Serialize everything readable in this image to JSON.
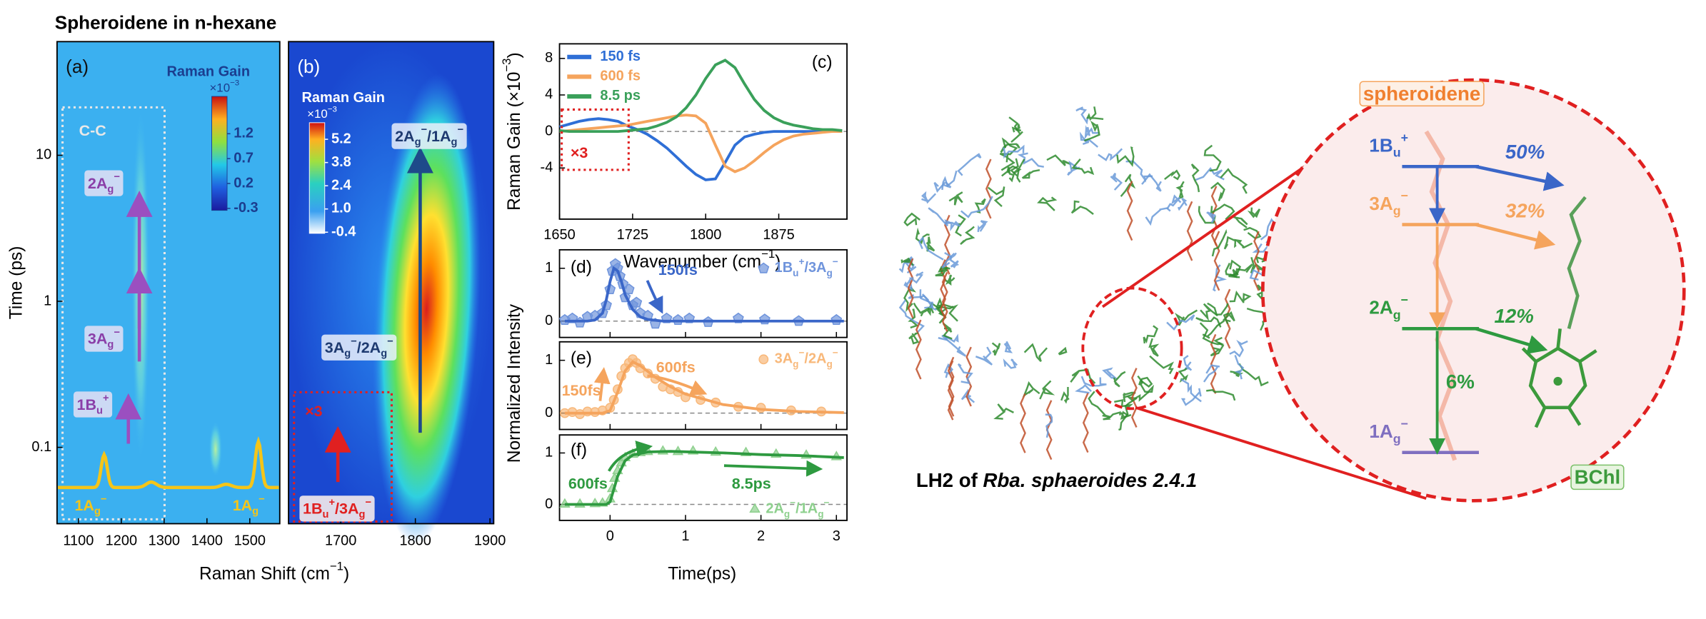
{
  "title": "Spheroidene in n-hexane",
  "chart_data": [
    {
      "type": "heatmap",
      "panel": "(a)",
      "xlim": [
        1050,
        1570
      ],
      "xticks": [
        1100,
        1200,
        1300,
        1400,
        1500
      ],
      "ylim": [
        0.03,
        60
      ],
      "yticks": [
        0.1,
        1,
        10
      ],
      "log_y": true,
      "ylabel": "Time (ps)",
      "colorbar": {
        "title": "Raman Gain",
        "unit": "×10−3",
        "lim": [
          -0.34,
          1.95
        ],
        "ticks": [
          1.2,
          0.7,
          0.2,
          -0.3
        ]
      },
      "annotations": [
        "C-C",
        "2Ag−",
        "3Ag−",
        "1Bu+",
        "1Ag−",
        "1Ag−"
      ]
    },
    {
      "type": "heatmap",
      "panel": "(b)",
      "xlim": [
        1630,
        1905
      ],
      "xticks": [
        1700,
        1800,
        1900
      ],
      "ylim": [
        0.03,
        60
      ],
      "log_y": true,
      "xlabel": "Raman Shift (cm−1)",
      "colorbar": {
        "title": "Raman Gain",
        "unit": "×10−3",
        "lim": [
          -0.47,
          6.2
        ],
        "ticks": [
          5.2,
          3.8,
          2.4,
          {
            "value": 1,
            "label": "1.0"
          },
          -0.4
        ]
      },
      "annotations": [
        "2Ag−/1Ag−",
        "3Ag−/2Ag−",
        "×3",
        "1Bu+/3Ag−"
      ]
    },
    {
      "type": "line",
      "panel": "(c)",
      "xlabel": "Wavenumber (cm−1)",
      "ylabel": "Raman Gain (×10−3)",
      "xlim": [
        1650,
        1945
      ],
      "xticks": [
        1650,
        1725,
        1800,
        1875
      ],
      "ylim": [
        -9.6,
        9.6
      ],
      "yticks": [
        -4,
        0,
        4,
        8
      ],
      "legend": "upper left",
      "annotations": [
        "×3"
      ],
      "x": [
        1650,
        1660,
        1670,
        1680,
        1690,
        1700,
        1710,
        1720,
        1730,
        1740,
        1750,
        1760,
        1770,
        1780,
        1790,
        1800,
        1810,
        1820,
        1830,
        1840,
        1850,
        1860,
        1870,
        1880,
        1890,
        1900,
        1910,
        1920,
        1930,
        1940
      ],
      "series": [
        {
          "name": "150 fs",
          "color": "#2f6fd6",
          "values": [
            0.5,
            0.8,
            1.1,
            1.3,
            1.4,
            1.3,
            1.1,
            0.6,
            0.2,
            -0.3,
            -1.0,
            -1.8,
            -2.8,
            -3.8,
            -4.7,
            -5.3,
            -5.2,
            -3.4,
            -1.5,
            -0.6,
            -0.3,
            -0.1,
            0,
            0,
            0,
            0,
            0,
            0,
            0,
            0
          ]
        },
        {
          "name": "600 fs",
          "color": "#f5a45d",
          "values": [
            0,
            0.1,
            0.2,
            0.3,
            0.4,
            0.5,
            0.6,
            0.7,
            0.9,
            1.1,
            1.3,
            1.5,
            1.7,
            1.8,
            1.7,
            0.9,
            -1.5,
            -3.8,
            -4.4,
            -4.0,
            -3.2,
            -2.3,
            -1.5,
            -0.9,
            -0.5,
            -0.3,
            -0.2,
            -0.1,
            0,
            0
          ]
        },
        {
          "name": "8.5 ps",
          "color": "#3aa05a",
          "values": [
            0.1,
            0,
            0,
            0,
            0,
            0,
            0,
            0.1,
            0.2,
            0.3,
            0.6,
            1.0,
            1.6,
            2.6,
            4.0,
            5.8,
            7.3,
            7.8,
            7.0,
            5.2,
            3.5,
            2.3,
            1.5,
            1.0,
            0.7,
            0.5,
            0.3,
            0.2,
            0.2,
            0.1
          ]
        }
      ]
    },
    {
      "type": "scatter",
      "panel": "(d)",
      "xlim": [
        -0.67,
        3.14
      ],
      "ylim": [
        -0.31,
        1.35
      ],
      "yticks": [
        0,
        1
      ],
      "annotations": [
        "150fs"
      ],
      "series": [
        {
          "name": "1Bu+/3Ag−",
          "type": "scatter",
          "marker": "pentagon",
          "color": "#6f94dc",
          "x": [
            -0.6,
            -0.5,
            -0.4,
            -0.3,
            -0.2,
            -0.1,
            -0.05,
            0,
            0.03,
            0.07,
            0.1,
            0.13,
            0.17,
            0.2,
            0.25,
            0.3,
            0.35,
            0.4,
            0.5,
            0.6,
            0.75,
            0.9,
            1.05,
            1.3,
            1.7,
            2.05,
            2.5,
            3.0
          ],
          "values": [
            0.02,
            0.05,
            -0.03,
            0.08,
            0.1,
            0.15,
            0.3,
            0.6,
            0.95,
            1.08,
            1.0,
            0.85,
            0.7,
            0.45,
            0.6,
            0.3,
            0.35,
            0.15,
            0.1,
            -0.05,
            0.05,
            0.02,
            0.05,
            -0.02,
            0.05,
            0.03,
            0.0,
            0.02
          ]
        },
        {
          "type": "line",
          "color": "#3a66c8",
          "x": [
            -0.6,
            -0.3,
            -0.2,
            -0.1,
            -0.05,
            0,
            0.05,
            0.1,
            0.15,
            0.2,
            0.3,
            0.4,
            0.5,
            0.7,
            1,
            2,
            3.1
          ],
          "values": [
            0,
            0,
            0.02,
            0.15,
            0.4,
            0.75,
            1.0,
            0.95,
            0.75,
            0.5,
            0.22,
            0.08,
            0.03,
            0,
            0,
            0,
            0
          ]
        }
      ]
    },
    {
      "type": "scatter",
      "panel": "(e)",
      "ylabel": "Normalized Intensity",
      "xlim": [
        -0.67,
        3.14
      ],
      "ylim": [
        -0.31,
        1.35
      ],
      "yticks": [
        0,
        1
      ],
      "annotations": [
        "150fs",
        "600fs"
      ],
      "series": [
        {
          "name": "3Ag−/2Ag−",
          "type": "scatter",
          "marker": "circle",
          "color": "#f8b87a",
          "x": [
            -0.6,
            -0.5,
            -0.4,
            -0.3,
            -0.2,
            -0.1,
            0,
            0.05,
            0.1,
            0.15,
            0.2,
            0.25,
            0.3,
            0.35,
            0.4,
            0.5,
            0.6,
            0.7,
            0.8,
            0.9,
            1.0,
            1.2,
            1.4,
            1.7,
            2.0,
            2.4,
            2.8
          ],
          "values": [
            0.0,
            0.02,
            -0.02,
            0.03,
            0.02,
            0.05,
            0.1,
            0.25,
            0.45,
            0.7,
            0.85,
            0.95,
            1.02,
            0.95,
            0.85,
            0.75,
            0.65,
            0.5,
            0.45,
            0.4,
            0.3,
            0.25,
            0.2,
            0.12,
            0.1,
            0.05,
            0.03
          ]
        },
        {
          "type": "line",
          "color": "#f5a45d",
          "x": [
            -0.6,
            -0.1,
            0,
            0.1,
            0.2,
            0.3,
            0.4,
            0.6,
            0.8,
            1.0,
            1.5,
            2,
            2.5,
            3.1
          ],
          "values": [
            0,
            0,
            0.05,
            0.4,
            0.8,
            0.97,
            0.9,
            0.68,
            0.5,
            0.36,
            0.16,
            0.07,
            0.03,
            0.01
          ]
        }
      ]
    },
    {
      "type": "scatter",
      "panel": "(f)",
      "xlabel": "Time(ps)",
      "xlim": [
        -0.67,
        3.14
      ],
      "xticks": [
        0,
        1,
        2,
        3
      ],
      "ylim": [
        -0.31,
        1.35
      ],
      "yticks": [
        0,
        1
      ],
      "annotations": [
        "600fs",
        "8.5ps"
      ],
      "series": [
        {
          "name": "2Ag−/1Ag−",
          "type": "scatter",
          "marker": "triangle",
          "color": "#8ed08e",
          "x": [
            -0.6,
            -0.4,
            -0.2,
            -0.1,
            0,
            0.03,
            0.06,
            0.1,
            0.15,
            0.2,
            0.3,
            0.4,
            0.5,
            0.7,
            0.9,
            1.1,
            1.4,
            1.8,
            2.2,
            2.6,
            3.0
          ],
          "values": [
            0,
            0,
            0.01,
            0.02,
            0.1,
            0.3,
            0.5,
            0.65,
            0.8,
            0.9,
            0.97,
            1.0,
            1.02,
            1.03,
            1.02,
            1.03,
            1.01,
            1.0,
            0.97,
            0.95,
            0.92
          ]
        },
        {
          "type": "line",
          "color": "#2e9a40",
          "x": [
            -0.6,
            -0.05,
            0,
            0.1,
            0.2,
            0.3,
            0.5,
            0.8,
            1.5,
            2.0,
            2.5,
            3.1
          ],
          "values": [
            0,
            0,
            0.05,
            0.55,
            0.85,
            0.96,
            1.02,
            1.03,
            1.0,
            0.97,
            0.95,
            0.91
          ]
        }
      ]
    }
  ],
  "diagram": {
    "caption": [
      "LH2 of ",
      "Rba. sphaeroides 2.4.1"
    ],
    "top_box": "spheroidene",
    "bottom_box": "BChl",
    "states": [
      "1Bu+",
      "3Ag−",
      "2Ag−",
      "1Ag−"
    ],
    "percents": [
      "50%",
      "32%",
      "12%",
      "6%"
    ]
  }
}
